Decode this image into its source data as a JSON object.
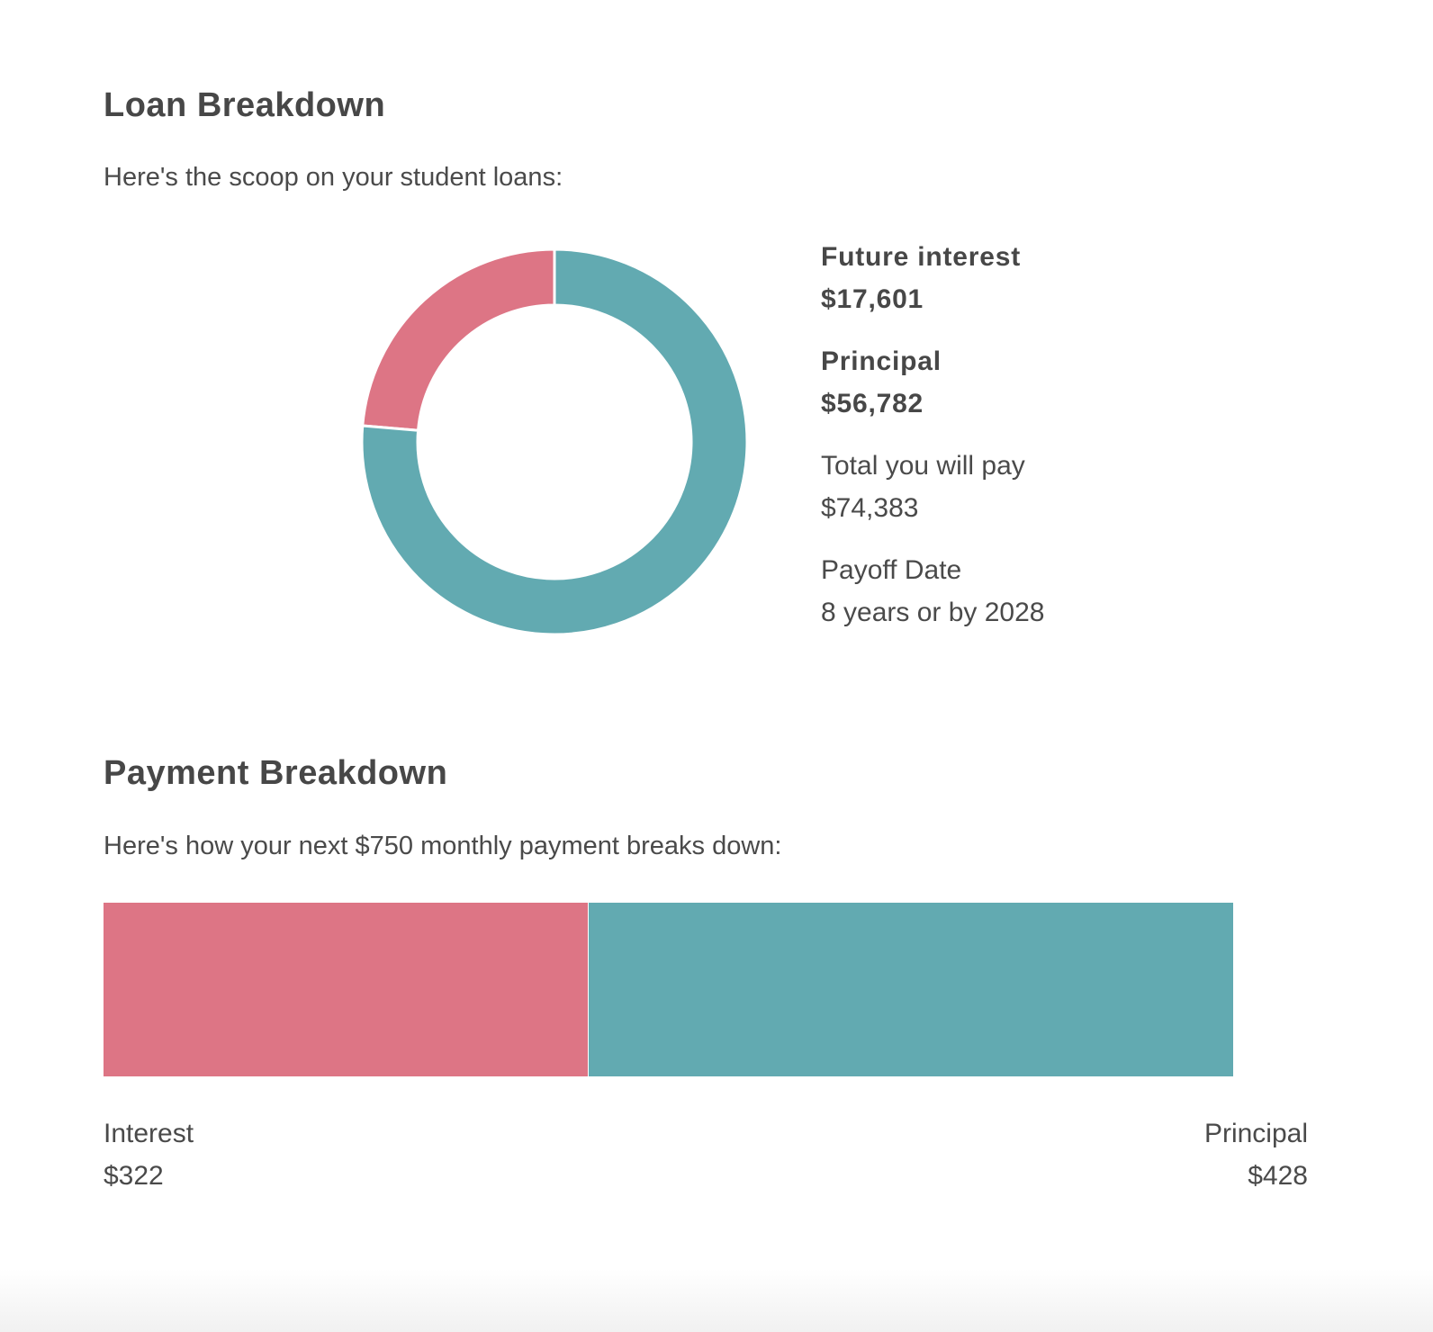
{
  "colors": {
    "interest": "#dd7585",
    "principal": "#62aab1",
    "heading": "#474747",
    "text": "#4a4a4a",
    "background": "#ffffff"
  },
  "loan_breakdown": {
    "title": "Loan Breakdown",
    "subtitle": "Here's the scoop on your student loans:",
    "stats": {
      "future_interest": {
        "label": "Future interest",
        "value": "$17,601"
      },
      "principal": {
        "label": "Principal",
        "value": "$56,782"
      },
      "total": {
        "label": "Total you will pay",
        "value": "$74,383"
      },
      "payoff": {
        "label": "Payoff Date",
        "value": "8 years or by 2028"
      }
    }
  },
  "payment_breakdown": {
    "title": "Payment Breakdown",
    "subtitle": "Here's how your next $750 monthly payment breaks down:",
    "interest": {
      "label": "Interest",
      "value": "$322"
    },
    "principal": {
      "label": "Principal",
      "value": "$428"
    }
  },
  "chart_data": [
    {
      "type": "pie",
      "variant": "donut",
      "categories": [
        "Future interest",
        "Principal"
      ],
      "values": [
        17601,
        56782
      ],
      "colors": [
        "#dd7585",
        "#62aab1"
      ]
    },
    {
      "type": "bar",
      "variant": "stacked-horizontal",
      "categories": [
        "Interest",
        "Principal"
      ],
      "values": [
        322,
        428
      ],
      "colors": [
        "#dd7585",
        "#62aab1"
      ]
    }
  ]
}
